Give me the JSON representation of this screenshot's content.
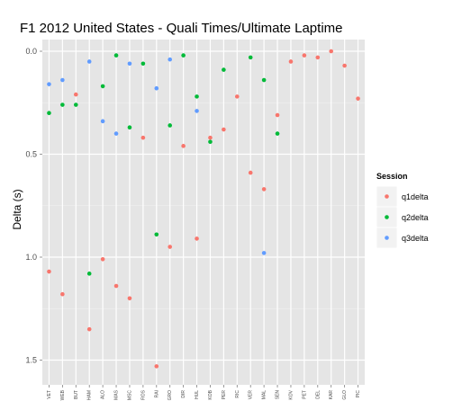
{
  "chart_data": {
    "type": "scatter",
    "title": "F1  2012 United States - Quali Times/Ultimate Laptime",
    "ylabel": "Delta (s)",
    "xlabel": "",
    "y_reversed": true,
    "ylim": [
      0,
      1.6
    ],
    "yticks": [
      "0.0",
      "0.5",
      "1.0",
      "1.5"
    ],
    "ytick_values": [
      0,
      0.5,
      1.0,
      1.5
    ],
    "grid": true,
    "background": "#e5e5e5",
    "legend": {
      "title": "Session",
      "position": "right"
    },
    "categories": [
      "VET",
      "WEB",
      "BUT",
      "HAM",
      "ALO",
      "MAS",
      "MSC",
      "ROS",
      "RAI",
      "GRO",
      "DIR",
      "HUL",
      "KOB",
      "PER",
      "RIC",
      "VER",
      "MAL",
      "SEN",
      "KOV",
      "PET",
      "DEL",
      "KAR",
      "GLO",
      "PIC"
    ],
    "series": [
      {
        "name": "q1delta",
        "color": "#f8766d",
        "values": [
          1.07,
          1.18,
          0.21,
          1.35,
          1.01,
          1.14,
          1.2,
          0.42,
          1.53,
          0.95,
          0.46,
          0.91,
          0.42,
          0.38,
          0.22,
          0.59,
          0.67,
          0.31,
          0.05,
          0.02,
          0.03,
          0.0,
          0.07,
          0.23
        ]
      },
      {
        "name": "q2delta",
        "color": "#00ba38",
        "values": [
          0.3,
          0.26,
          0.26,
          1.08,
          0.17,
          0.02,
          0.37,
          0.06,
          0.89,
          0.36,
          0.02,
          0.22,
          0.44,
          0.09,
          null,
          0.03,
          0.14,
          0.4,
          null,
          null,
          null,
          null,
          null,
          null
        ]
      },
      {
        "name": "q3delta",
        "color": "#619cff",
        "values": [
          0.16,
          0.14,
          null,
          0.05,
          0.34,
          0.4,
          0.06,
          null,
          0.18,
          0.04,
          null,
          0.29,
          null,
          null,
          null,
          null,
          0.98,
          null,
          null,
          null,
          null,
          null,
          null,
          null
        ]
      }
    ]
  }
}
